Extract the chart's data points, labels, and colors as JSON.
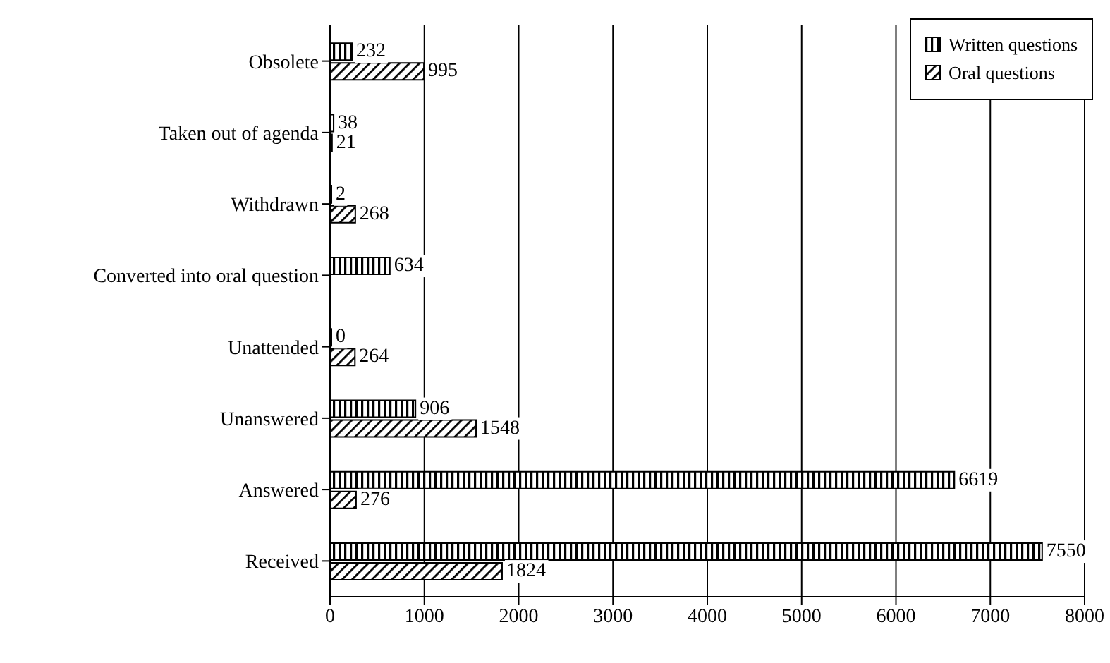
{
  "chart_data": {
    "type": "bar",
    "orientation": "horizontal",
    "categories": [
      "Obsolete",
      "Taken out of agenda",
      "Withdrawn",
      "Converted into oral question",
      "Unattended",
      "Unanswered",
      "Answered",
      "Received"
    ],
    "series": [
      {
        "name": "Written questions",
        "color": "#000000",
        "values": [
          232,
          38,
          2,
          634,
          0,
          906,
          6619,
          7550
        ]
      },
      {
        "name": "Oral questions",
        "color": "#000000",
        "values": [
          995,
          21,
          268,
          null,
          264,
          1548,
          276,
          1824
        ]
      }
    ],
    "xlim": [
      0,
      8000
    ],
    "xticks": [
      0,
      1000,
      2000,
      3000,
      4000,
      5000,
      6000,
      7000,
      8000
    ],
    "grid": "x",
    "legend": "top right",
    "data_labels": true
  }
}
